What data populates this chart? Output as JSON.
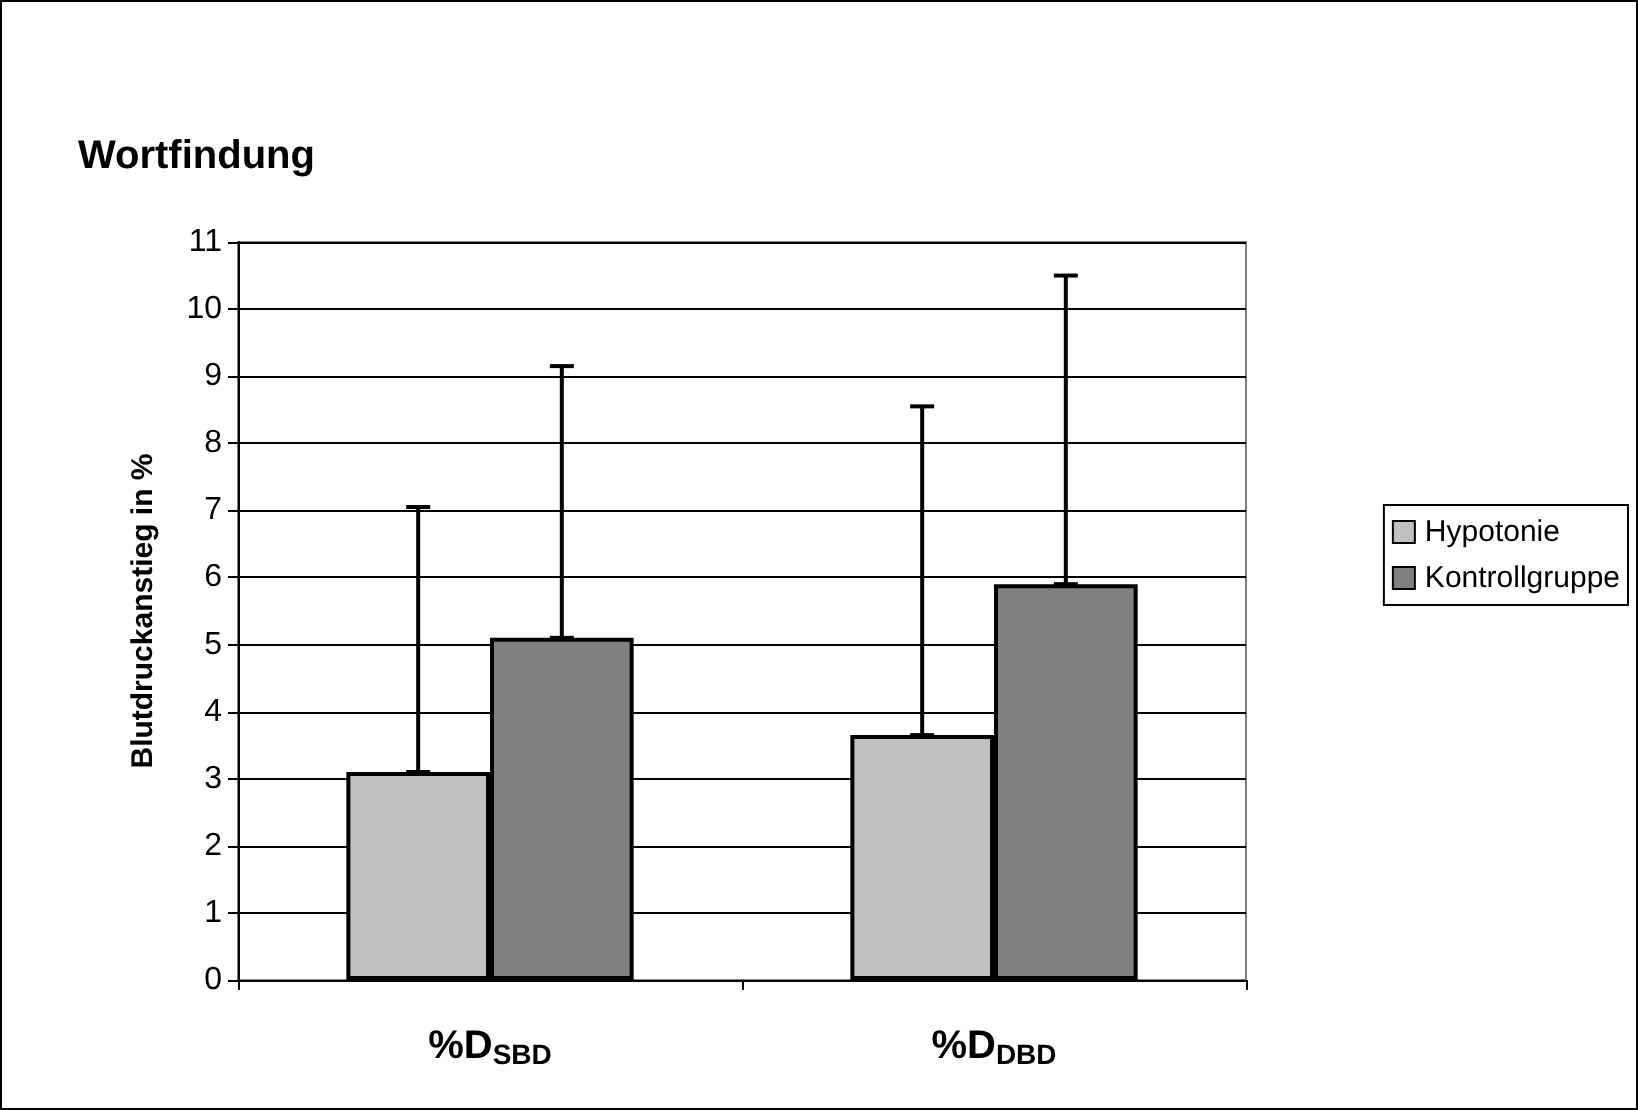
{
  "chart_data": {
    "type": "bar",
    "title": "Wortfindung",
    "ylabel": "Blutdruckanstieg in %",
    "categories": [
      "%D$_{SBD}$",
      "%D$_{DBD}$"
    ],
    "series": [
      {
        "name": "Hypotonie",
        "color": "#c0c0c0",
        "values": [
          3.1,
          3.65
        ],
        "errors": [
          [
            3.1,
            7.05
          ],
          [
            3.65,
            8.55
          ]
        ]
      },
      {
        "name": "Kontrollgruppe",
        "color": "#808080",
        "values": [
          5.1,
          5.9
        ],
        "errors": [
          [
            5.1,
            9.15
          ],
          [
            5.9,
            10.5
          ]
        ]
      }
    ],
    "ylim": [
      0,
      11
    ],
    "yticks": [
      0,
      1,
      2,
      3,
      4,
      5,
      6,
      7,
      8,
      9,
      10,
      11
    ],
    "grid": "y",
    "legend": "right"
  }
}
